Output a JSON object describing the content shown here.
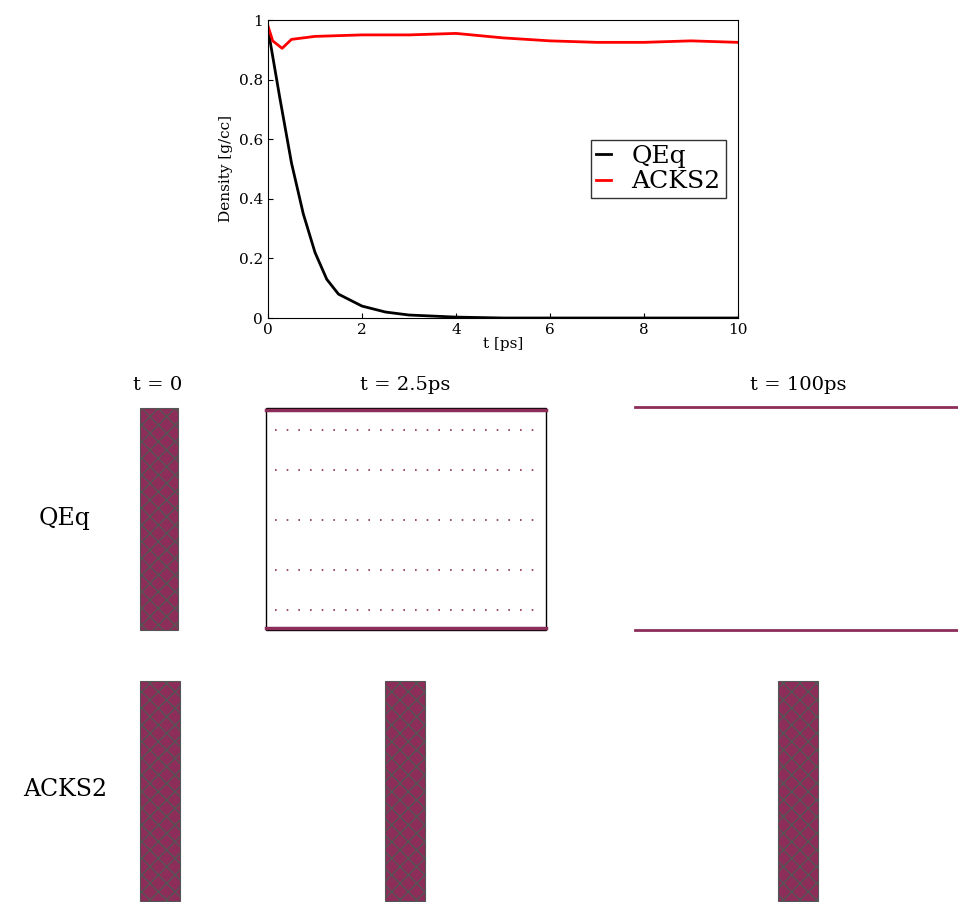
{
  "chart_data": {
    "type": "line",
    "x_label": "t [ps]",
    "y_label": "Density [g/cc]",
    "xlim": [
      0,
      10
    ],
    "xticks": [
      0,
      2,
      4,
      6,
      8,
      10
    ],
    "ylim": [
      0,
      1
    ],
    "yticks": [
      0,
      0.2,
      0.4,
      0.6,
      0.8,
      1
    ],
    "legend": "center right",
    "series": [
      {
        "name": "QEq",
        "color": "#000000",
        "x": [
          0,
          0.25,
          0.5,
          0.75,
          1,
          1.25,
          1.5,
          2,
          2.5,
          3,
          4,
          5,
          6,
          8,
          10
        ],
        "values": [
          0.97,
          0.74,
          0.52,
          0.35,
          0.22,
          0.13,
          0.08,
          0.04,
          0.02,
          0.01,
          0.003,
          0,
          0,
          0,
          0
        ]
      },
      {
        "name": "ACKS2",
        "color": "#ff0000",
        "x": [
          0,
          0.1,
          0.3,
          0.5,
          1,
          2,
          3,
          4,
          5,
          6,
          7,
          8,
          9,
          10
        ],
        "values": [
          0.98,
          0.93,
          0.905,
          0.935,
          0.945,
          0.95,
          0.95,
          0.955,
          0.94,
          0.93,
          0.925,
          0.925,
          0.93,
          0.925
        ]
      }
    ]
  },
  "snapshots": {
    "columns": [
      "t = 0",
      "t = 2.5ps",
      "t = 100ps"
    ],
    "rows": [
      "QEq",
      "ACKS2"
    ]
  }
}
